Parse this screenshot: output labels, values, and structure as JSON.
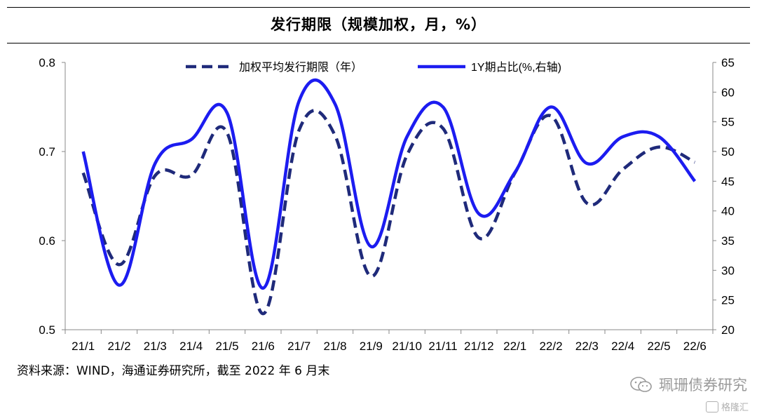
{
  "title": "发行期限（规模加权，月，%）",
  "source_note": "资料来源：WIND，海通证券研究所，截至 2022 年 6 月末",
  "brand_text": "珮珊债券研究",
  "watermark_text": "格隆汇",
  "chart_data": {
    "type": "line",
    "categories": [
      "21/1",
      "21/2",
      "21/3",
      "21/4",
      "21/5",
      "21/6",
      "21/7",
      "21/8",
      "21/9",
      "21/10",
      "21/11",
      "21/12",
      "22/1",
      "22/2",
      "22/3",
      "22/4",
      "22/5",
      "22/6"
    ],
    "y_left": {
      "range": [
        0.5,
        0.8
      ],
      "ticks": [
        "0.5",
        "0.6",
        "0.7",
        "0.8"
      ]
    },
    "y_right": {
      "range": [
        20,
        65
      ],
      "ticks": [
        "20",
        "25",
        "30",
        "35",
        "40",
        "45",
        "50",
        "55",
        "60",
        "65"
      ]
    },
    "grid": false,
    "legend_position": "top",
    "series": [
      {
        "name": "加权平均发行期限（年）",
        "axis": "left",
        "style": "dashed",
        "color": "#1f2a7a",
        "values": [
          0.676,
          0.573,
          0.673,
          0.673,
          0.721,
          0.518,
          0.724,
          0.718,
          0.56,
          0.696,
          0.726,
          0.603,
          0.676,
          0.74,
          0.642,
          0.68,
          0.705,
          0.688
        ]
      },
      {
        "name": "1Y期占比(%,右轴)",
        "axis": "right",
        "style": "solid",
        "color": "#1c1cf0",
        "values": [
          50.0,
          27.5,
          48.0,
          52.0,
          56.5,
          27.0,
          58.5,
          58.0,
          34.0,
          52.5,
          57.5,
          39.5,
          46.5,
          57.5,
          48.0,
          52.5,
          52.5,
          45.0
        ]
      }
    ]
  }
}
